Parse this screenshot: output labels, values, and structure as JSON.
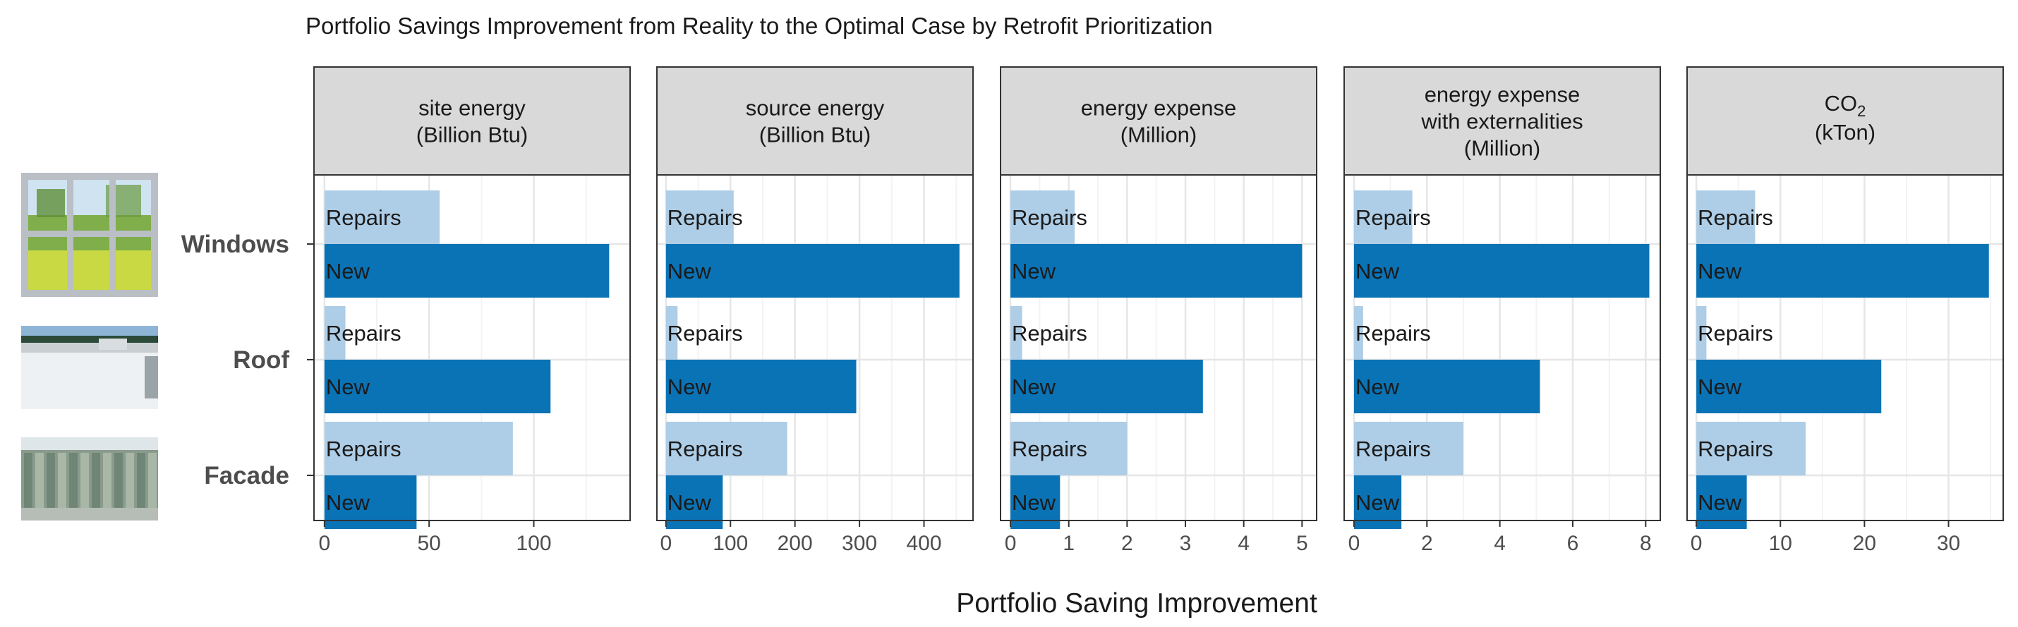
{
  "colors": {
    "repairs": "#aecde6",
    "new": "#0a73b6",
    "strip_fill": "#d9d9d9",
    "panel_border": "#333333",
    "grid_major": "#e6e6e6",
    "grid_minor": "#f3f3f3",
    "text_dark": "#1a1a1a",
    "text_axis": "#4d4d4d"
  },
  "images": [
    {
      "name": "windows-photo",
      "description_icon": "window-icon"
    },
    {
      "name": "roof-photo",
      "description_icon": "roof-icon"
    },
    {
      "name": "facade-photo",
      "description_icon": "facade-icon"
    }
  ],
  "chart_data": {
    "type": "bar",
    "orientation": "horizontal",
    "title": "Portfolio Savings Improvement from Reality to the Optimal Case by Retrofit Prioritization",
    "xlabel": "Portfolio Saving Improvement",
    "ylabel": "",
    "categories": [
      "Windows",
      "Roof",
      "Facade"
    ],
    "series_labels": [
      "Repairs",
      "New"
    ],
    "panels": [
      {
        "title_lines": [
          "site energy",
          "(Billion Btu)"
        ],
        "xlim": [
          -5,
          146
        ],
        "ticks": [
          0,
          50,
          100
        ],
        "minor_ticks": [
          25,
          75,
          125
        ],
        "tick_labels": [
          "0",
          "50",
          "100"
        ],
        "series": [
          {
            "name": "Repairs",
            "values": [
              55,
              10,
              90
            ]
          },
          {
            "name": "New",
            "values": [
              136,
              108,
              44
            ]
          }
        ]
      },
      {
        "title_lines": [
          "source energy",
          "(Billion Btu)"
        ],
        "xlim": [
          -14,
          476
        ],
        "ticks": [
          0,
          100,
          200,
          300,
          400
        ],
        "minor_ticks": [
          50,
          150,
          250,
          350,
          450
        ],
        "tick_labels": [
          "0",
          "100",
          "200",
          "300",
          "400"
        ],
        "series": [
          {
            "name": "Repairs",
            "values": [
              105,
              18,
              188
            ]
          },
          {
            "name": "New",
            "values": [
              455,
              295,
              88
            ]
          }
        ]
      },
      {
        "title_lines": [
          "energy expense",
          "(Million)"
        ],
        "xlim": [
          -0.17,
          5.25
        ],
        "ticks": [
          0,
          1,
          2,
          3,
          4,
          5
        ],
        "minor_ticks": [
          0.5,
          1.5,
          2.5,
          3.5,
          4.5
        ],
        "tick_labels": [
          "0",
          "1",
          "2",
          "3",
          "4",
          "5"
        ],
        "series": [
          {
            "name": "Repairs",
            "values": [
              1.1,
              0.2,
              2.0
            ]
          },
          {
            "name": "New",
            "values": [
              5.0,
              3.3,
              0.85
            ]
          }
        ]
      },
      {
        "title_lines": [
          "energy expense",
          "with externalities",
          "(Million)"
        ],
        "xlim": [
          -0.27,
          8.4
        ],
        "ticks": [
          0,
          2,
          4,
          6,
          8
        ],
        "minor_ticks": [
          1,
          3,
          5,
          7
        ],
        "tick_labels": [
          "0",
          "2",
          "4",
          "6",
          "8"
        ],
        "series": [
          {
            "name": "Repairs",
            "values": [
              1.6,
              0.25,
              3.0
            ]
          },
          {
            "name": "New",
            "values": [
              8.1,
              5.1,
              1.3
            ]
          }
        ]
      },
      {
        "title_lines": [
          "CO",
          "2",
          "(kTon)"
        ],
        "title_has_subscript": true,
        "xlim": [
          -1.1,
          36.5
        ],
        "ticks": [
          0,
          10,
          20,
          30
        ],
        "minor_ticks": [
          5,
          15,
          25,
          35
        ],
        "tick_labels": [
          "0",
          "10",
          "20",
          "30"
        ],
        "series": [
          {
            "name": "Repairs",
            "values": [
              7,
              1.2,
              13
            ]
          },
          {
            "name": "New",
            "values": [
              34.8,
              22,
              6
            ]
          }
        ]
      }
    ]
  }
}
